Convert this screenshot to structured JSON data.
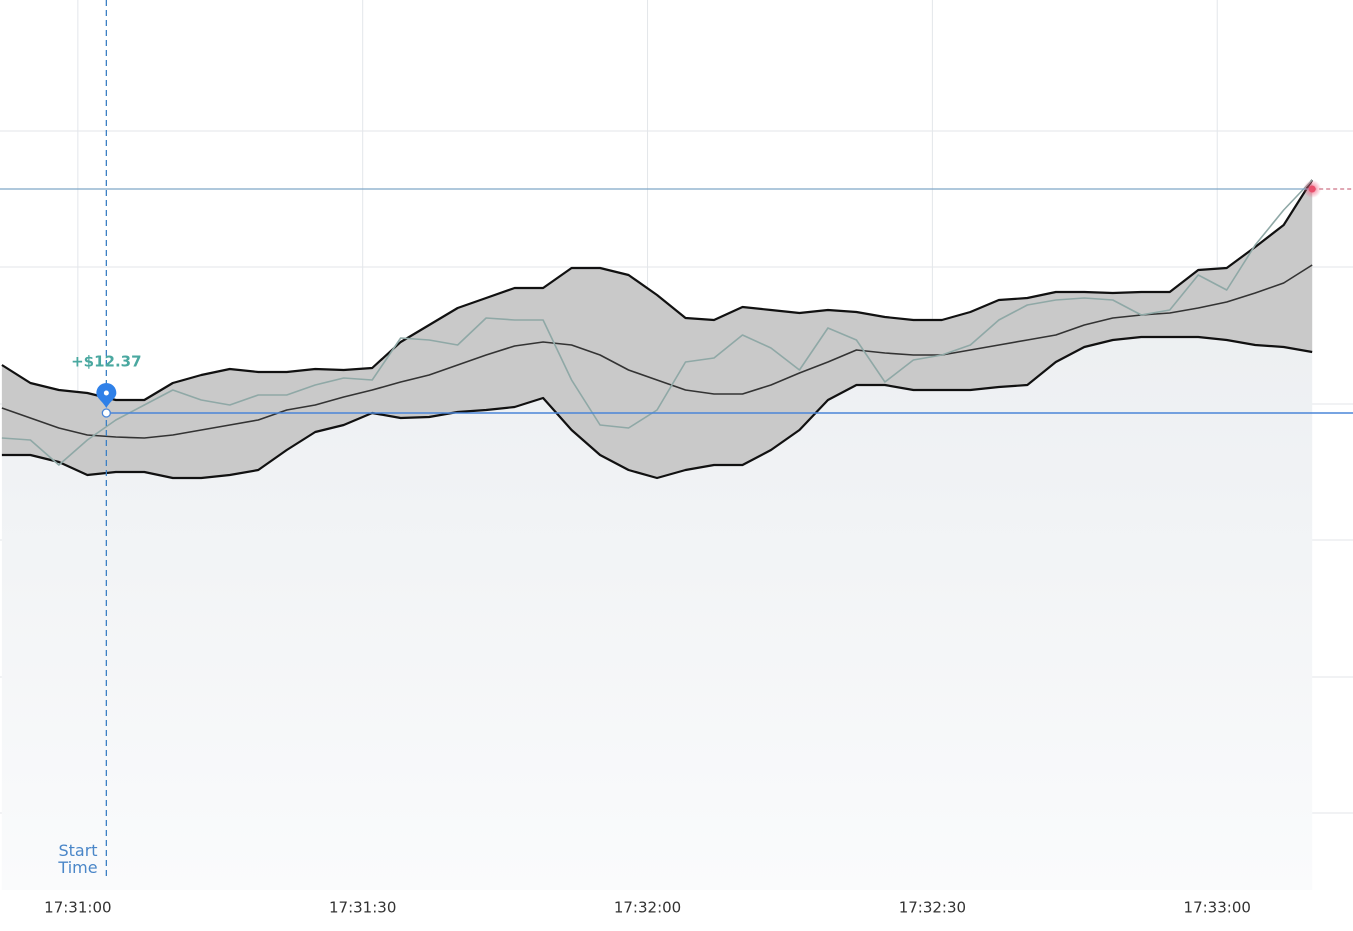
{
  "chart_data": {
    "type": "line",
    "x": [
      -8,
      -5,
      -2,
      1,
      4,
      7,
      10,
      13,
      16,
      19,
      22,
      25,
      28,
      31,
      34,
      37,
      40,
      43,
      46,
      49,
      52,
      55,
      58,
      61,
      64,
      67,
      70,
      73,
      76,
      79,
      82,
      85,
      88,
      91,
      94,
      97,
      100,
      103,
      106,
      109,
      112,
      115,
      118,
      121,
      124,
      127,
      130
    ],
    "xlim": [
      -8.2,
      134.3
    ],
    "xticks": [
      {
        "value": 0,
        "label": "17:31:00"
      },
      {
        "value": 30,
        "label": "17:31:30"
      },
      {
        "value": 60,
        "label": "17:32:00"
      },
      {
        "value": 90,
        "label": "17:32:30"
      },
      {
        "value": 120,
        "label": "17:33:00"
      }
    ],
    "ylim": [
      4.1,
      93.1
    ],
    "yticks": [
      11.8,
      25.4,
      39.1,
      52.7,
      66.4,
      80.0
    ],
    "grid": true,
    "band_color": "#c9c9c9",
    "series": [
      {
        "color": "#111111",
        "values": [
          56.6,
          54.8,
          54.1,
          53.8,
          53.1,
          53.1,
          54.8,
          55.6,
          56.2,
          55.9,
          55.9,
          56.2,
          56.1,
          56.3,
          58.9,
          60.6,
          62.3,
          63.3,
          64.3,
          64.3,
          66.3,
          66.3,
          65.6,
          63.6,
          61.3,
          61.1,
          62.4,
          62.1,
          61.8,
          62.1,
          61.9,
          61.4,
          61.1,
          61.1,
          61.9,
          63.1,
          63.3,
          63.9,
          63.9,
          63.8,
          63.9,
          63.9,
          66.1,
          66.3,
          68.4,
          70.6,
          75.1
        ]
      },
      {
        "color": "#333333",
        "values": [
          52.3,
          51.3,
          50.3,
          49.6,
          49.4,
          49.3,
          49.6,
          50.1,
          50.6,
          51.1,
          52.1,
          52.6,
          53.4,
          54.1,
          54.9,
          55.6,
          56.6,
          57.6,
          58.5,
          58.9,
          58.6,
          57.6,
          56.1,
          55.1,
          54.1,
          53.7,
          53.7,
          54.6,
          55.8,
          56.9,
          58.1,
          57.8,
          57.6,
          57.6,
          58.1,
          58.6,
          59.1,
          59.6,
          60.6,
          61.3,
          61.6,
          61.8,
          62.3,
          62.9,
          63.8,
          64.8,
          66.6
        ]
      },
      {
        "color": "#111111",
        "values": [
          47.6,
          47.6,
          46.9,
          45.6,
          45.9,
          45.9,
          45.3,
          45.3,
          45.6,
          46.1,
          48.1,
          49.9,
          50.6,
          51.8,
          51.3,
          51.4,
          51.9,
          52.1,
          52.4,
          53.3,
          50.1,
          47.6,
          46.1,
          45.3,
          46.1,
          46.6,
          46.6,
          48.1,
          50.1,
          53.1,
          54.6,
          54.6,
          54.1,
          54.1,
          54.1,
          54.4,
          54.6,
          56.9,
          58.4,
          59.1,
          59.4,
          59.4,
          59.4,
          59.1,
          58.6,
          58.4,
          57.9
        ]
      },
      {
        "color": "#8fa8a6",
        "values": [
          49.3,
          49.1,
          46.6,
          49.1,
          51.1,
          52.6,
          54.1,
          53.1,
          52.6,
          53.6,
          53.6,
          54.6,
          55.3,
          55.1,
          59.3,
          59.1,
          58.6,
          61.3,
          61.1,
          61.1,
          55.1,
          50.6,
          50.3,
          52.1,
          56.9,
          57.3,
          59.6,
          58.3,
          56.1,
          60.3,
          59.1,
          54.9,
          57.1,
          57.6,
          58.6,
          61.1,
          62.6,
          63.1,
          63.3,
          63.1,
          61.6,
          62.1,
          65.6,
          64.1,
          68.6,
          72.1,
          75.1
        ]
      }
    ],
    "start_time": {
      "x": 3,
      "label": "Start Time"
    },
    "entry": {
      "y": 51.8,
      "label": "+$12.37"
    },
    "current_price": {
      "y": 74.2
    }
  }
}
